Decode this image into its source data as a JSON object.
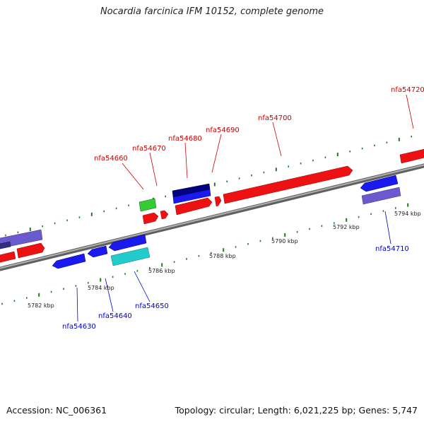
{
  "title": "Nocardia farcinica IFM 10152, complete genome",
  "accession": "Accession: NC_006361",
  "summary": "Topology: circular; Length: 6,021,225 bp; Genes: 5,747",
  "colors": {
    "backbone": "#8a8a8a",
    "tick": "#1e7a1e",
    "label_plus": "#cc0000",
    "label_minus": "#0000cc"
  },
  "scale_labels": [
    "5782 kbp",
    "5784 kbp",
    "5786 kbp",
    "5788 kbp",
    "5790 kbp",
    "5792 kbp",
    "5794 kbp"
  ],
  "gene_labels_top": [
    "nfa54660",
    "nfa54670",
    "nfa54680",
    "nfa54690",
    "nfa54700",
    "nfa54720"
  ],
  "gene_labels_bottom": [
    "nfa54630",
    "nfa54640",
    "nfa54650",
    "nfa54710"
  ]
}
